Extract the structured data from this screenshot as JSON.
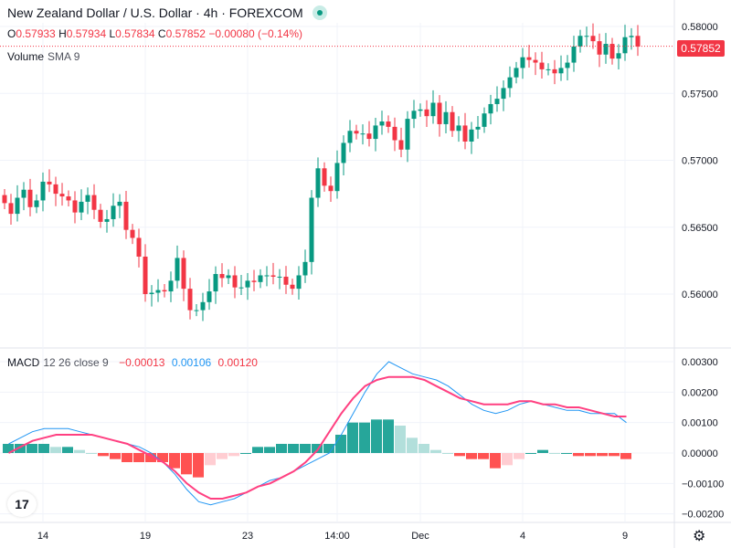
{
  "header": {
    "title": "New Zealand Dollar / U.S. Dollar · 4h · FOREXCOM",
    "open_label": "O",
    "open": "0.57933",
    "high_label": "H",
    "high": "0.57934",
    "low_label": "L",
    "low": "0.57834",
    "close_label": "C",
    "close": "0.57852",
    "change": "−0.00080 (−0.14%)",
    "volume_label": "Volume",
    "volume_sma": "SMA 9",
    "current_price": "0.57852"
  },
  "macd_header": {
    "label": "MACD",
    "params": "12 26 close 9",
    "histogram_value": "−0.00013",
    "macd_value": "0.00106",
    "signal_value": "0.00120"
  },
  "colors": {
    "up": "#089981",
    "down": "#f23645",
    "macd_line": "#2196f3",
    "signal_line": "#ff4081",
    "hist_up_strong": "#26a69a",
    "hist_up_weak": "#b2dfdb",
    "hist_down_strong": "#ff5252",
    "hist_down_weak": "#ffcdd2"
  },
  "chart_data": [
    {
      "type": "candlestick",
      "title": "New Zealand Dollar / U.S. Dollar · 4h · FOREXCOM",
      "price_ticks": [
        "0.58000",
        "0.57500",
        "0.57000",
        "0.56500",
        "0.56000"
      ],
      "ylim": [
        0.5575,
        0.5812
      ],
      "x_ticks": [
        {
          "label": "14",
          "index": 6
        },
        {
          "label": "19",
          "index": 22
        },
        {
          "label": "23",
          "index": 38
        },
        {
          "label": "14:00",
          "index": 52
        },
        {
          "label": "Dec",
          "index": 65
        },
        {
          "label": "4",
          "index": 81
        },
        {
          "label": "9",
          "index": 97
        }
      ],
      "x_tick_labels": [
        "14",
        "19",
        "23",
        "14:00",
        "Dec",
        "4",
        "9"
      ],
      "grid": true,
      "last_price": 0.57852,
      "closes": [
        0.5668,
        0.566,
        0.5672,
        0.5678,
        0.5665,
        0.567,
        0.5684,
        0.5682,
        0.5675,
        0.5673,
        0.567,
        0.5661,
        0.5669,
        0.5674,
        0.5663,
        0.5654,
        0.5656,
        0.5666,
        0.5669,
        0.5648,
        0.5642,
        0.5628,
        0.56,
        0.5601,
        0.5603,
        0.5602,
        0.561,
        0.5627,
        0.5604,
        0.5588,
        0.5588,
        0.5594,
        0.5602,
        0.5615,
        0.5612,
        0.5614,
        0.5605,
        0.5605,
        0.561,
        0.5609,
        0.5614,
        0.5614,
        0.5613,
        0.5613,
        0.5607,
        0.5604,
        0.5614,
        0.5624,
        0.5672,
        0.5694,
        0.5681,
        0.5677,
        0.5698,
        0.5713,
        0.5722,
        0.572,
        0.572,
        0.5716,
        0.5726,
        0.5729,
        0.5725,
        0.5715,
        0.5708,
        0.5731,
        0.5737,
        0.5738,
        0.5733,
        0.5743,
        0.5727,
        0.5736,
        0.5722,
        0.5726,
        0.5714,
        0.5723,
        0.5725,
        0.5735,
        0.5742,
        0.5746,
        0.5754,
        0.5762,
        0.5769,
        0.5777,
        0.5775,
        0.5773,
        0.5768,
        0.5768,
        0.5765,
        0.5769,
        0.5773,
        0.5785,
        0.5793,
        0.5793,
        0.5789,
        0.5779,
        0.5787,
        0.5776,
        0.578,
        0.5792,
        0.5793,
        0.5785
      ],
      "volume_label": "Volume",
      "volume_sma": "SMA 9"
    },
    {
      "type": "macd",
      "title": "MACD 12 26 close 9",
      "y_ticks": [
        "0.00300",
        "0.00200",
        "0.00100",
        "0.00000",
        "−0.00100",
        "−0.00200"
      ],
      "ylim": [
        -0.0023,
        0.0031
      ],
      "series": [
        {
          "name": "MACD",
          "values": [
            0.0003,
            0.0005,
            0.0007,
            0.0008,
            0.0008,
            0.0008,
            0.0007,
            0.0006,
            0.0005,
            0.0004,
            0.0003,
            0.0002,
            0.0,
            -0.0003,
            -0.0007,
            -0.0012,
            -0.0016,
            -0.0017,
            -0.0016,
            -0.0015,
            -0.0013,
            -0.0011,
            -0.0009,
            -0.0008,
            -0.0006,
            -0.0004,
            -0.0002,
            0.0,
            0.0006,
            0.0013,
            0.002,
            0.0026,
            0.003,
            0.0028,
            0.0026,
            0.0025,
            0.0024,
            0.0022,
            0.0019,
            0.0016,
            0.0014,
            0.0013,
            0.0014,
            0.0016,
            0.0017,
            0.0016,
            0.0015,
            0.0014,
            0.0014,
            0.0013,
            0.0013,
            0.0013,
            0.001
          ]
        },
        {
          "name": "Signal",
          "values": [
            0.0,
            0.0002,
            0.0004,
            0.0005,
            0.0006,
            0.0006,
            0.0006,
            0.0006,
            0.0005,
            0.0004,
            0.0003,
            0.0001,
            -0.0001,
            -0.0003,
            -0.0006,
            -0.001,
            -0.0013,
            -0.0015,
            -0.0015,
            -0.0014,
            -0.0013,
            -0.0011,
            -0.001,
            -0.0008,
            -0.0006,
            -0.0003,
            0.0001,
            0.0007,
            0.0013,
            0.0018,
            0.0022,
            0.0024,
            0.0025,
            0.0025,
            0.0025,
            0.0024,
            0.0022,
            0.002,
            0.0018,
            0.0017,
            0.0016,
            0.0016,
            0.0016,
            0.0017,
            0.0017,
            0.0016,
            0.0016,
            0.0015,
            0.0015,
            0.0014,
            0.0013,
            0.0012,
            0.0012
          ]
        },
        {
          "name": "Histogram",
          "values": [
            0.0003,
            0.0003,
            0.0003,
            0.0003,
            0.0002,
            0.0002,
            0.0001,
            0.0,
            -0.0001,
            -0.0002,
            -0.0003,
            -0.0003,
            -0.0003,
            -0.0003,
            -0.0005,
            -0.0007,
            -0.0008,
            -0.0004,
            -0.0002,
            -0.0001,
            0.0,
            0.0002,
            0.0002,
            0.0003,
            0.0003,
            0.0003,
            0.0003,
            0.0003,
            0.0006,
            0.001,
            0.001,
            0.0011,
            0.0011,
            0.0009,
            0.0005,
            0.0003,
            0.0001,
            0.0,
            -0.0001,
            -0.0002,
            -0.0002,
            -0.0005,
            -0.0004,
            -0.0002,
            0.0,
            0.0001,
            0.0,
            0.0,
            -0.0001,
            -0.0001,
            -0.0001,
            -0.0001,
            -0.0002
          ]
        }
      ]
    }
  ]
}
